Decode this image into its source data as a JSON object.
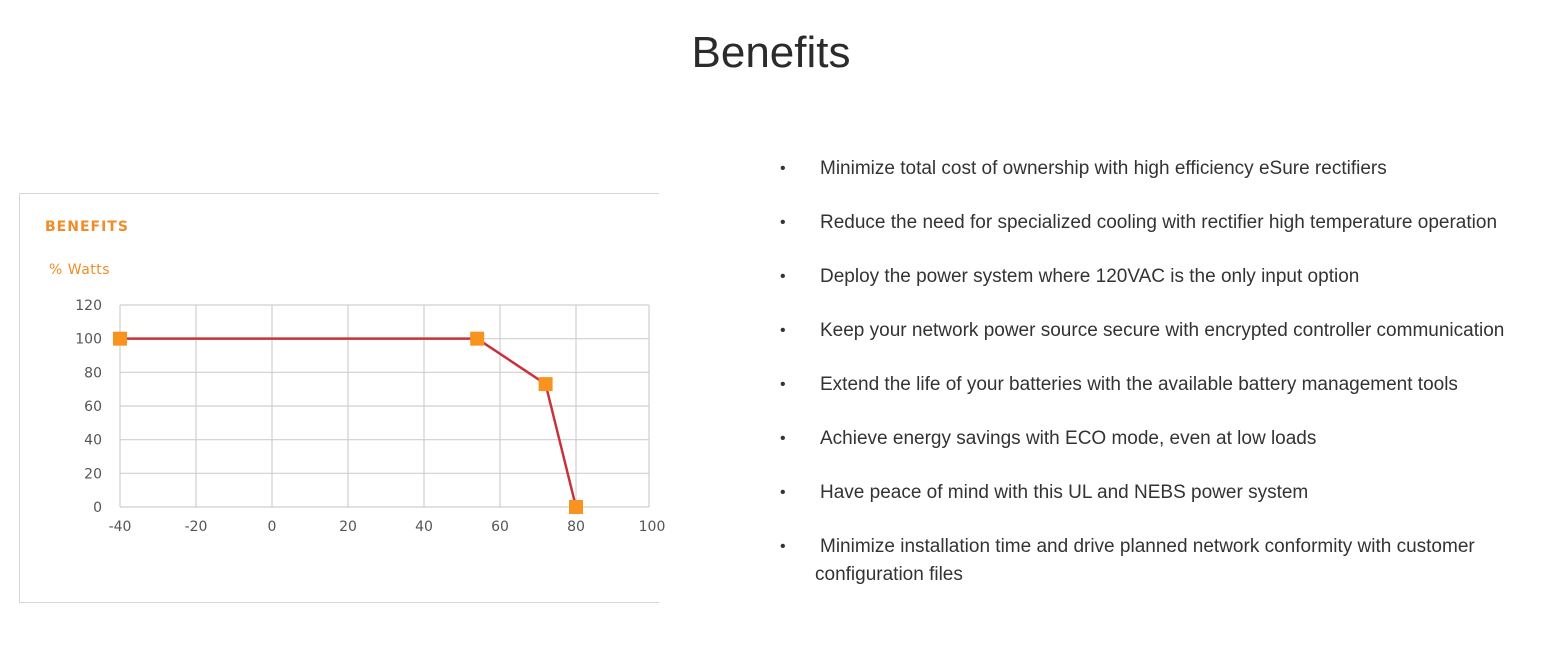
{
  "page": {
    "title": "Benefits"
  },
  "chart_data": {
    "type": "line",
    "title": "BENEFITS",
    "ylabel": "% Watts",
    "xlabel": "",
    "x_ticks": [
      "-40",
      "-20",
      "0",
      "20",
      "40",
      "60",
      "80",
      "100"
    ],
    "y_ticks": [
      "120",
      "100",
      "80",
      "60",
      "40",
      "20",
      "0"
    ],
    "xlim": [
      -40,
      100
    ],
    "ylim": [
      0,
      120
    ],
    "grid": true,
    "series": [
      {
        "color": "#c8323c",
        "marker_color": "#f7931e",
        "points": [
          {
            "x": -40,
            "y": 100,
            "marker": true
          },
          {
            "x": 54,
            "y": 100,
            "marker": true
          },
          {
            "x": 64,
            "y": 85,
            "marker": false
          },
          {
            "x": 72,
            "y": 73,
            "marker": true
          },
          {
            "x": 80,
            "y": 0,
            "marker": true
          }
        ]
      }
    ]
  },
  "benefits": {
    "bullet": "•",
    "items": [
      "Minimize total cost of ownership with high efficiency eSure rectifiers",
      "Reduce the need for specialized cooling with rectifier high temperature operation",
      "Deploy the power system where 120VAC is the only input option",
      "Keep your network power source secure with encrypted controller communication",
      "Extend the life of your batteries with the available battery management tools",
      "Achieve energy savings with ECO mode, even at low loads",
      "Have peace of mind with this UL and NEBS power system",
      "Minimize installation time and drive planned network conformity with customer configuration files"
    ]
  }
}
